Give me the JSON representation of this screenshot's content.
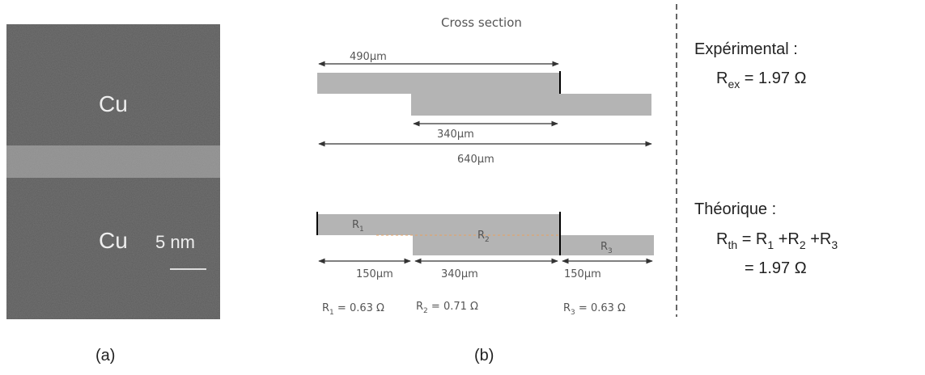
{
  "panel_a": {
    "labels": [
      "Cu",
      "Cu"
    ],
    "scale_bar": "5 nm",
    "caption": "(a)"
  },
  "panel_b": {
    "title": "Cross section",
    "top_dims": [
      "490µm",
      "340µm",
      "640µm"
    ],
    "segments": [
      {
        "base": "R",
        "sub": "1",
        "length": "150µm",
        "value": " = 0.63 Ω"
      },
      {
        "base": "R",
        "sub": "2",
        "length": "340µm",
        "value": " = 0.71 Ω"
      },
      {
        "base": "R",
        "sub": "3",
        "length": "150µm",
        "value": " = 0.63 Ω"
      }
    ],
    "caption": "(b)"
  },
  "results": {
    "experimental": {
      "heading": "Expérimental :",
      "base": "R",
      "sub": "ex",
      "value": " = 1.97 Ω"
    },
    "theoretical": {
      "heading": "Théorique :",
      "formula": [
        {
          "base": "R",
          "sub": "th"
        },
        {
          "base": " = R",
          "sub": "1"
        },
        {
          "base": " +R",
          "sub": "2"
        },
        {
          "base": " +R",
          "sub": "3"
        }
      ],
      "result": "= 1.97 Ω"
    }
  }
}
